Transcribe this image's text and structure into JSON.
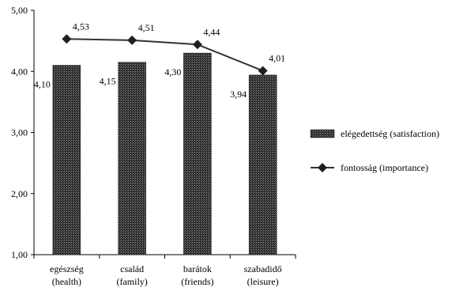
{
  "chart_data": {
    "type": "bar",
    "categories": [
      [
        "egészség",
        "(health)"
      ],
      [
        "család",
        "(family)"
      ],
      [
        "barátok",
        "(friends)"
      ],
      [
        "szabadidő",
        "(leisure)"
      ]
    ],
    "ylim": [
      1,
      5
    ],
    "yticks": [
      1,
      2,
      3,
      4,
      5
    ],
    "ytick_labels": [
      "1,00",
      "2,00",
      "3,00",
      "4,00",
      "5,00"
    ],
    "grid": false,
    "legend_position": "right",
    "series": [
      {
        "name": "elégedettség (satisfaction)",
        "kind": "bar",
        "values": [
          4.1,
          4.15,
          4.3,
          3.94
        ],
        "labels": [
          "4,10",
          "4,15",
          "4,30",
          "3,94"
        ],
        "color": "#3a3a3a"
      },
      {
        "name": "fontosság (importance)",
        "kind": "line",
        "marker": "diamond",
        "values": [
          4.53,
          4.51,
          4.44,
          4.01
        ],
        "labels": [
          "4,53",
          "4,51",
          "4,44",
          "4,01"
        ],
        "color": "#333333"
      }
    ]
  }
}
